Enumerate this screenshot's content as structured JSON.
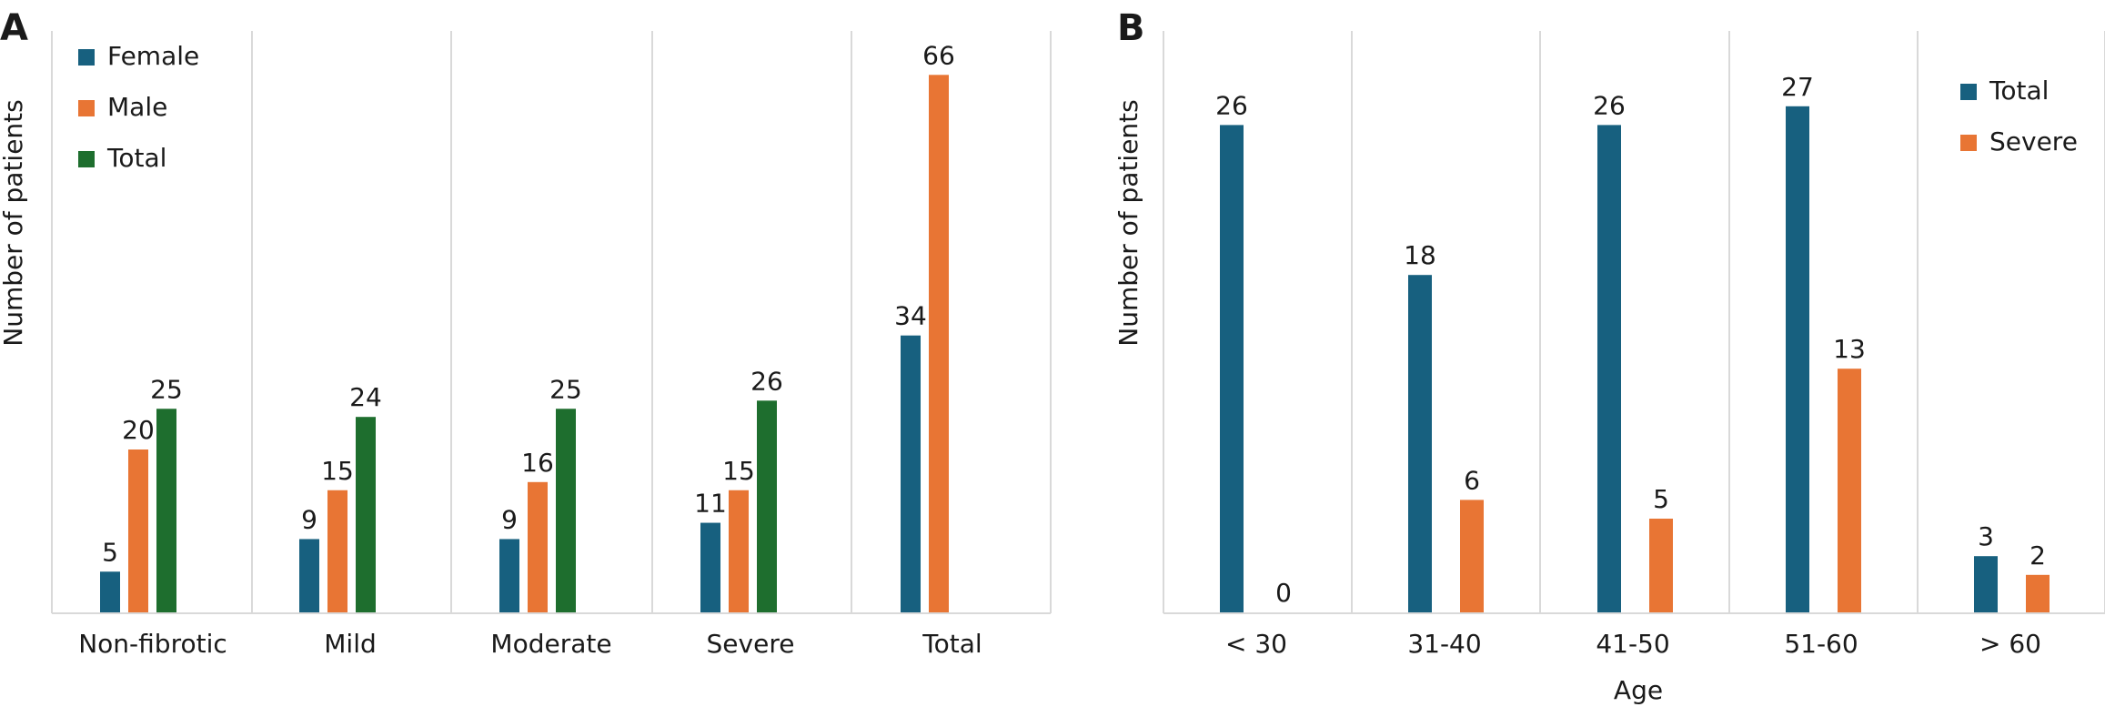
{
  "panels": [
    {
      "letter": "A",
      "ylabel": "Number of patients"
    },
    {
      "letter": "B",
      "ylabel": "Number of patients"
    }
  ],
  "colors": {
    "Female": "#17607f",
    "Male": "#e87534",
    "Total_A": "#1e6e2e",
    "Total_B": "#17607f",
    "Severe": "#e87534",
    "separator": "#d9d9d9"
  },
  "chart_data": [
    {
      "type": "bar",
      "panel": "A",
      "title": "",
      "xlabel": "",
      "ylabel": "Number of patients",
      "ylim": [
        0,
        70
      ],
      "grid": false,
      "legend_position": "top-left",
      "categories": [
        "Non-fibrotic",
        "Mild",
        "Moderate",
        "Severe",
        "Total"
      ],
      "series": [
        {
          "name": "Female",
          "values": [
            5,
            9,
            9,
            11,
            34
          ]
        },
        {
          "name": "Male",
          "values": [
            20,
            15,
            16,
            15,
            66
          ]
        },
        {
          "name": "Total",
          "values": [
            25,
            24,
            25,
            26,
            null
          ]
        }
      ]
    },
    {
      "type": "bar",
      "panel": "B",
      "title": "",
      "xlabel": "Age",
      "ylabel": "Number of patients",
      "ylim": [
        0,
        30
      ],
      "grid": false,
      "legend_position": "top-right",
      "categories": [
        "< 30",
        "31-40",
        "41-50",
        "51-60",
        "> 60"
      ],
      "series": [
        {
          "name": "Total",
          "values": [
            26,
            18,
            26,
            27,
            3
          ]
        },
        {
          "name": "Severe",
          "values": [
            0,
            6,
            5,
            13,
            2
          ]
        }
      ]
    }
  ]
}
